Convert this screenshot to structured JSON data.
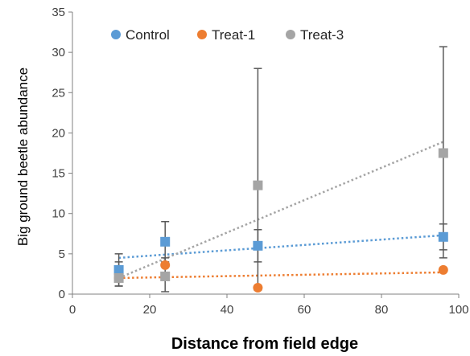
{
  "chart_data": {
    "type": "scatter",
    "xlabel": "Distance from field edge",
    "ylabel": "Big ground beetle abundance",
    "xlim": [
      0,
      100
    ],
    "ylim": [
      0,
      35
    ],
    "xticks": [
      0,
      20,
      40,
      60,
      80,
      100
    ],
    "yticks": [
      0,
      5,
      10,
      15,
      20,
      25,
      30,
      35
    ],
    "grid": false,
    "legend": "top",
    "x": [
      12,
      24,
      48,
      96
    ],
    "series": [
      {
        "name": "Control",
        "color": "#5b9bd5",
        "marker": "square",
        "values": [
          3.0,
          6.5,
          6.0,
          7.1
        ],
        "error_low": [
          1.0,
          4.0,
          4.0,
          5.5
        ],
        "error_high": [
          5.0,
          9.0,
          8.0,
          8.7
        ],
        "trend": [
          4.5,
          7.3
        ]
      },
      {
        "name": "Treat-1",
        "color": "#ed7d31",
        "marker": "circle",
        "values": [
          2.0,
          3.6,
          0.8,
          3.0
        ],
        "trend": [
          2.0,
          2.7
        ]
      },
      {
        "name": "Treat-3",
        "color": "#a5a5a5",
        "marker": "square",
        "values": [
          2.0,
          2.2,
          13.5,
          17.5
        ],
        "error_low": [
          1.0,
          0.3,
          0.5,
          4.5
        ],
        "error_high": [
          4.0,
          4.5,
          28.0,
          30.7
        ],
        "trend": [
          2.0,
          18.9
        ]
      }
    ]
  }
}
